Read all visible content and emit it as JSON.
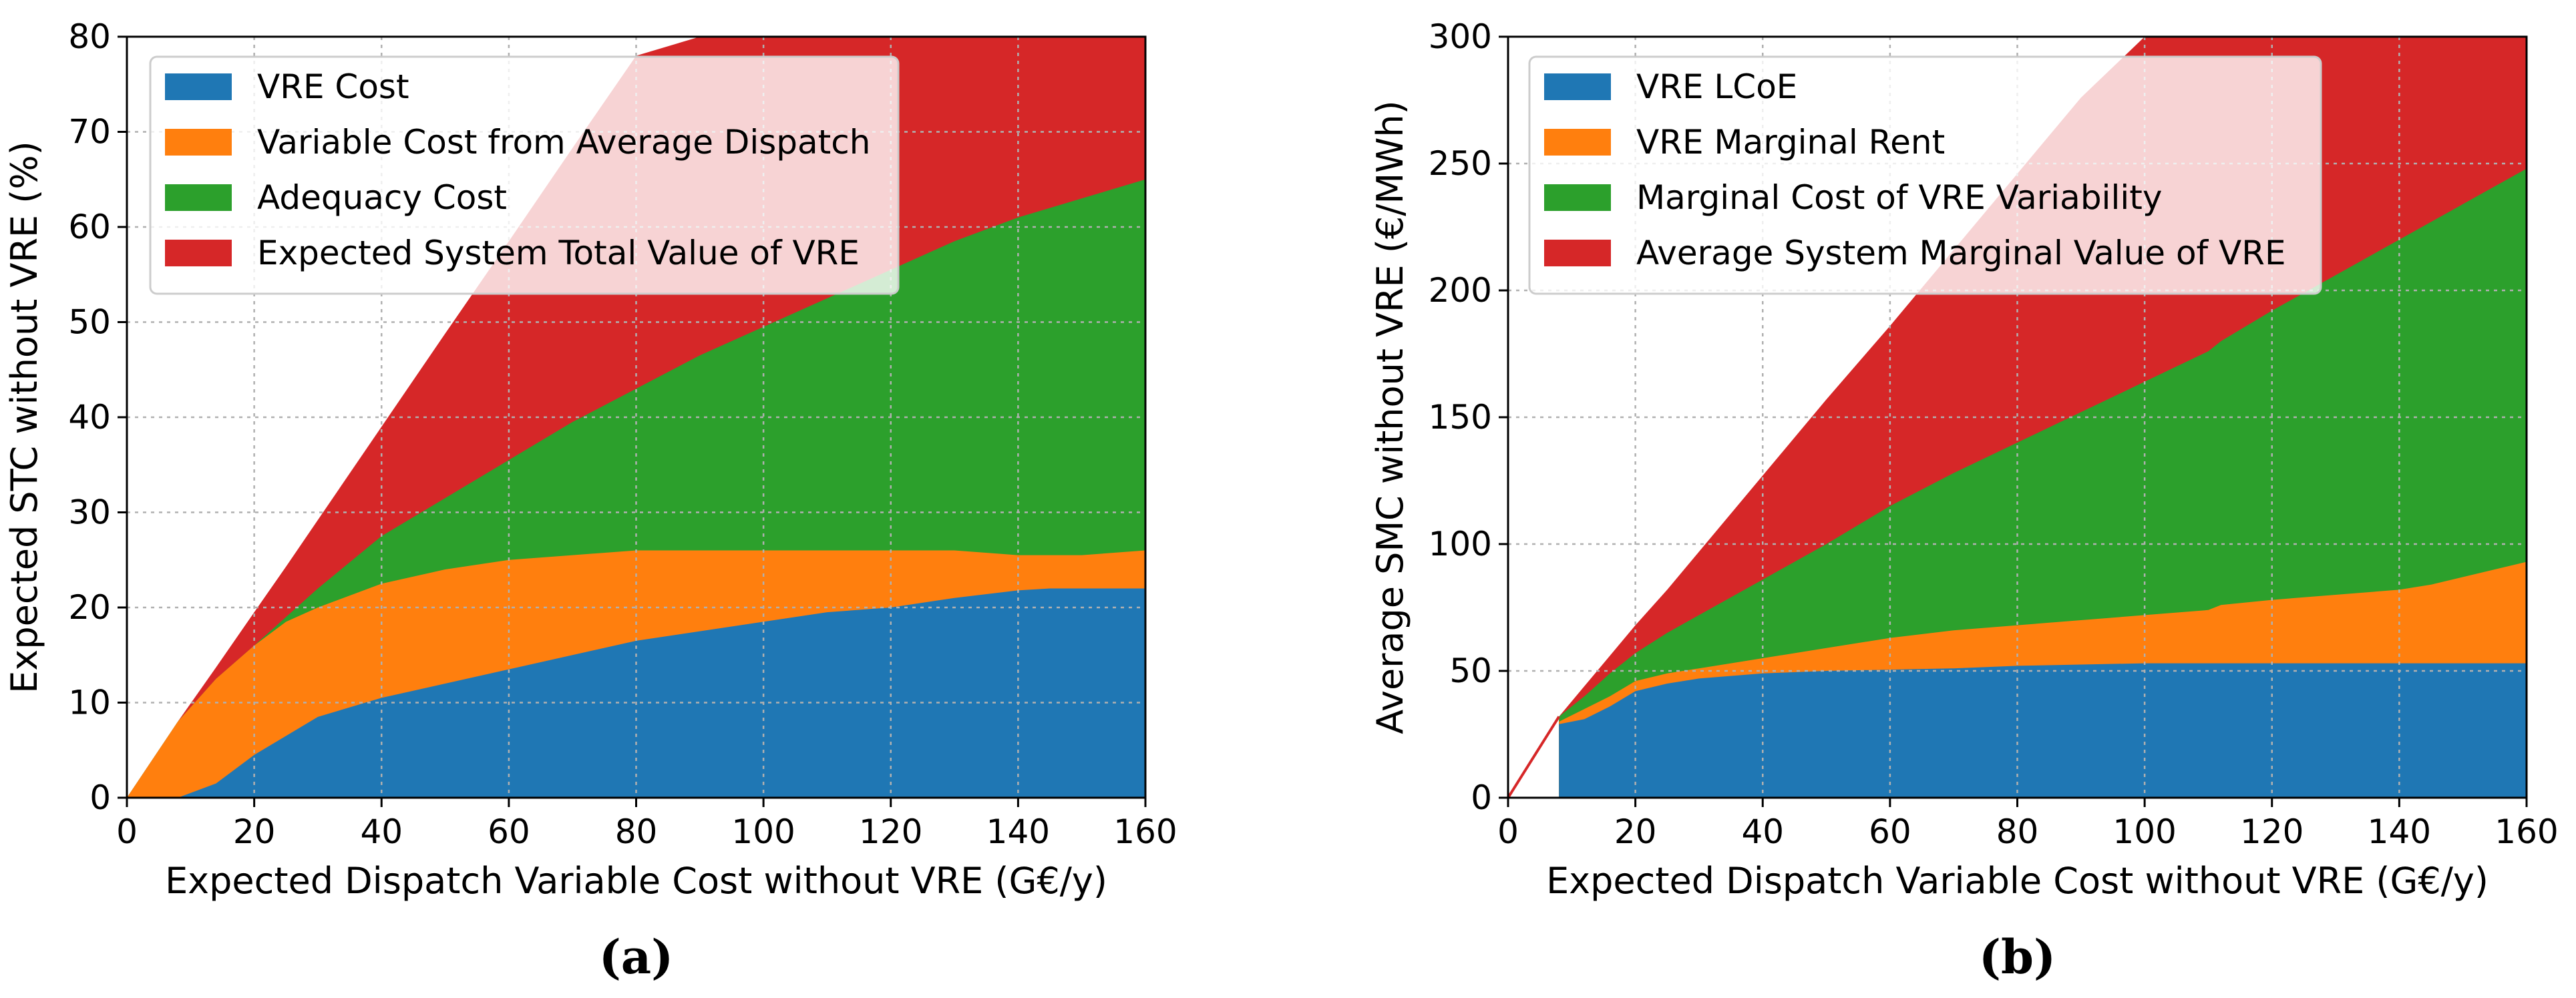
{
  "chart_data": [
    {
      "type": "area",
      "panel_label": "(a)",
      "title": "",
      "xlabel": "Expected Dispatch Variable Cost without VRE (G€/y)",
      "ylabel": "Expected STC without VRE (%)",
      "xlim": [
        0,
        160
      ],
      "ylim": [
        0,
        80
      ],
      "xticks": [
        "0",
        "20",
        "40",
        "60",
        "80",
        "100",
        "120",
        "140",
        "160"
      ],
      "yticks": [
        "0",
        "10",
        "20",
        "30",
        "40",
        "50",
        "60",
        "70",
        "80"
      ],
      "grid": true,
      "legend_position": "top-left",
      "x": [
        0,
        8,
        14,
        20,
        25,
        30,
        40,
        50,
        60,
        70,
        80,
        90,
        100,
        110,
        120,
        130,
        140,
        145,
        150,
        160
      ],
      "series": [
        {
          "name": "VRE Cost",
          "color": "#1f77b4",
          "values": [
            0,
            0,
            1.5,
            4.5,
            6.5,
            8.5,
            10.5,
            12,
            13.5,
            15,
            16.5,
            17.5,
            18.5,
            19.5,
            20,
            21,
            21.8,
            22,
            22,
            22
          ]
        },
        {
          "name": "Variable Cost from Average Dispatch",
          "color": "#ff7f0e",
          "values": [
            0,
            8,
            12.5,
            16,
            18.5,
            20,
            22.5,
            24,
            25,
            25.5,
            26,
            26,
            26,
            26,
            26,
            26,
            25.5,
            25.5,
            25.5,
            26
          ]
        },
        {
          "name": "Adequacy Cost",
          "color": "#2ca02c",
          "values": [
            0,
            8,
            12.5,
            16,
            19,
            22,
            27.5,
            31.5,
            35.5,
            39.5,
            43,
            46.5,
            49.5,
            52.5,
            55.5,
            58.5,
            61,
            62,
            63,
            65
          ]
        },
        {
          "name": "Expected System Total Value of VRE",
          "color": "#d62728",
          "values": [
            0,
            8,
            13.7,
            19.5,
            24.3,
            29.2,
            39,
            48.8,
            58.5,
            68.3,
            78,
            80,
            80,
            80,
            80,
            80,
            80,
            80,
            80,
            80
          ]
        }
      ]
    },
    {
      "type": "area",
      "panel_label": "(b)",
      "title": "",
      "xlabel": "Expected Dispatch Variable Cost without VRE (G€/y)",
      "ylabel": "Average SMC without VRE (€/MWh)",
      "xlim": [
        0,
        160
      ],
      "ylim": [
        0,
        300
      ],
      "xticks": [
        "0",
        "20",
        "40",
        "60",
        "80",
        "100",
        "120",
        "140",
        "160"
      ],
      "yticks": [
        "0",
        "50",
        "100",
        "150",
        "200",
        "250",
        "300"
      ],
      "grid": true,
      "legend_position": "top-left",
      "x_start": 8,
      "x": [
        8,
        12,
        16,
        20,
        25,
        30,
        40,
        50,
        60,
        70,
        80,
        90,
        100,
        110,
        112,
        120,
        130,
        140,
        145,
        150,
        160
      ],
      "series": [
        {
          "name": "VRE LCoE",
          "color": "#1f77b4",
          "values": [
            29,
            31,
            36,
            42,
            45,
            47,
            49,
            50,
            50.5,
            51,
            52,
            52.5,
            53,
            53,
            53,
            53,
            53,
            53,
            53,
            53,
            53
          ]
        },
        {
          "name": "VRE Marginal Rent",
          "color": "#ff7f0e",
          "values": [
            30,
            35,
            40,
            46,
            49,
            51,
            55,
            59,
            63,
            66,
            68,
            70,
            72,
            74,
            76,
            78,
            80,
            82,
            84,
            87,
            93
          ]
        },
        {
          "name": "Marginal Cost of VRE Variability",
          "color": "#2ca02c",
          "values": [
            32,
            40,
            49,
            57,
            65,
            72,
            86,
            100,
            115,
            128,
            140,
            152,
            164,
            176,
            180,
            192,
            206,
            220,
            227,
            234,
            248
          ]
        },
        {
          "name": "Average System Marginal Value of VRE",
          "color": "#d62728",
          "values": [
            32,
            44,
            56,
            68,
            82,
            97,
            127,
            157,
            186,
            216,
            246,
            276,
            300,
            300,
            300,
            300,
            300,
            300,
            300,
            300,
            300
          ]
        }
      ]
    }
  ]
}
